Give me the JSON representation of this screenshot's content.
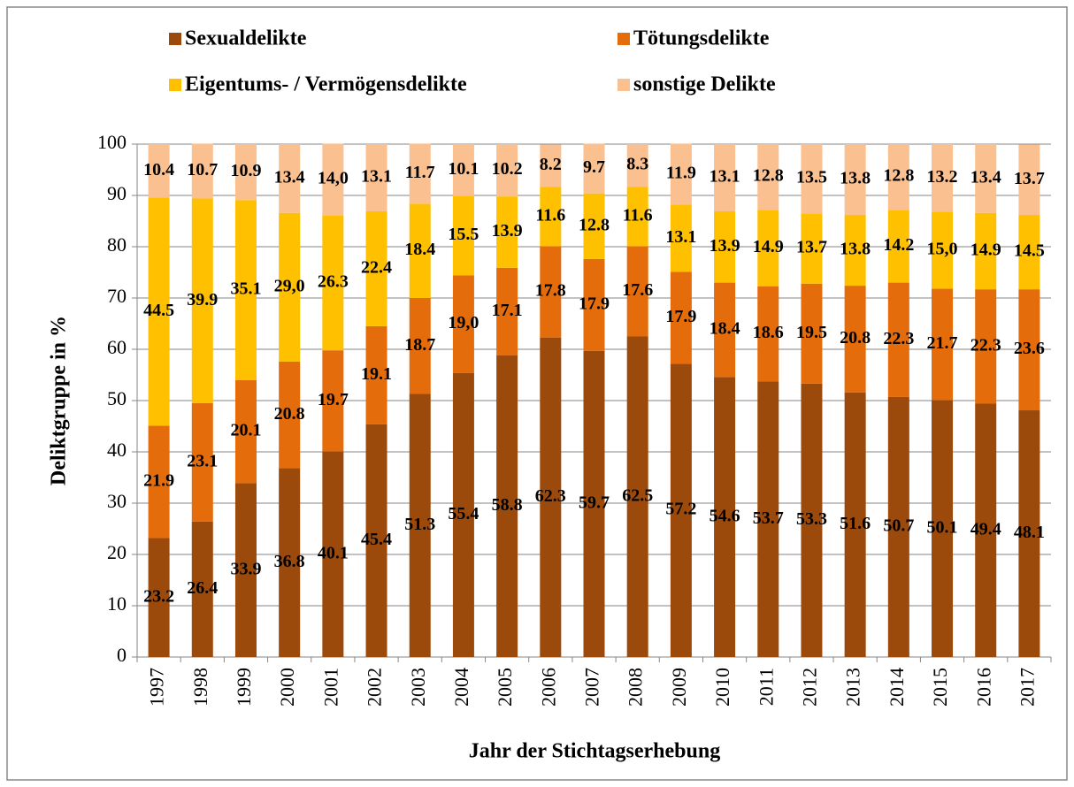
{
  "chart_data": {
    "type": "stacked-bar",
    "categories": [
      "1997",
      "1998",
      "1999",
      "2000",
      "2001",
      "2002",
      "2003",
      "2004",
      "2005",
      "2006",
      "2007",
      "2008",
      "2009",
      "2010",
      "2011",
      "2012",
      "2013",
      "2014",
      "2015",
      "2016",
      "2017"
    ],
    "series": [
      {
        "name": "Sexualdelikte",
        "color": "#9c4a0b",
        "values": [
          23.2,
          26.4,
          33.9,
          36.8,
          40.1,
          45.4,
          51.3,
          55.4,
          58.8,
          62.3,
          59.7,
          62.5,
          57.2,
          54.6,
          53.7,
          53.3,
          51.6,
          50.7,
          50.1,
          49.4,
          48.1
        ]
      },
      {
        "name": "Tötungsdelikte",
        "color": "#e46c0a",
        "values": [
          21.9,
          23.1,
          20.1,
          20.8,
          19.7,
          19.1,
          18.7,
          19.0,
          17.1,
          17.8,
          17.9,
          17.6,
          17.9,
          18.4,
          18.6,
          19.5,
          20.8,
          22.3,
          21.7,
          22.3,
          23.6
        ],
        "value_labels": [
          "21.9",
          "23.1",
          "20.1",
          "20.8",
          "19.7",
          "19.1",
          "18.7",
          "19,0",
          "17.1",
          "17.8",
          "17.9",
          "17.6",
          "17.9",
          "18.4",
          "18.6",
          "19.5",
          "20.8",
          "22.3",
          "21.7",
          "22.3",
          "23.6"
        ]
      },
      {
        "name": "Eigentums- / Vermögensdelikte",
        "color": "#ffc000",
        "values": [
          44.5,
          39.9,
          35.1,
          29.0,
          26.3,
          22.4,
          18.4,
          15.5,
          13.9,
          11.6,
          12.8,
          11.6,
          13.1,
          13.9,
          14.9,
          13.7,
          13.8,
          14.2,
          15.0,
          14.9,
          14.5
        ],
        "value_labels": [
          "44.5",
          "39.9",
          "35.1",
          "29,0",
          "26.3",
          "22.4",
          "18.4",
          "15.5",
          "13.9",
          "11.6",
          "12.8",
          "11.6",
          "13.1",
          "13.9",
          "14.9",
          "13.7",
          "13.8",
          "14.2",
          "15,0",
          "14.9",
          "14.5"
        ]
      },
      {
        "name": "sonstige Delikte",
        "color": "#fac090",
        "values": [
          10.4,
          10.7,
          10.9,
          13.4,
          14.0,
          13.1,
          11.7,
          10.1,
          10.2,
          8.2,
          9.7,
          8.3,
          11.9,
          13.1,
          12.8,
          13.5,
          13.8,
          12.8,
          13.2,
          13.4,
          13.7
        ],
        "value_labels": [
          "10.4",
          "10.7",
          "10.9",
          "13.4",
          "14,0",
          "13.1",
          "11.7",
          "10.1",
          "10.2",
          "8.2",
          "9.7",
          "8.3",
          "11.9",
          "13.1",
          "12.8",
          "13.5",
          "13.8",
          "12.8",
          "13.2",
          "13.4",
          "13.7"
        ]
      }
    ],
    "x_label": "Jahr der Stichtagserhebung",
    "y_label": "Deliktgruppe in %",
    "ylim": [
      0,
      100
    ],
    "yticks": [
      0,
      10,
      20,
      30,
      40,
      50,
      60,
      70,
      80,
      90,
      100
    ],
    "grid": true,
    "legend": "top"
  }
}
